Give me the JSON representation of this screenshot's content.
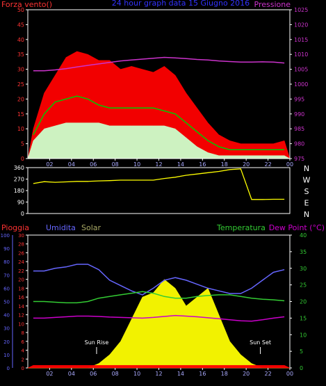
{
  "chart_data": [
    {
      "type": "area",
      "title": "24 hour graph data  15 Giugno 2016",
      "left_axis_label": "Forza vento()",
      "right_axis_label": "Pressione",
      "x_tick_labels": [
        "02",
        "04",
        "06",
        "08",
        "10",
        "12",
        "14",
        "16",
        "18",
        "20",
        "22",
        "00"
      ],
      "y_left_ticks": [
        0,
        5,
        10,
        15,
        20,
        25,
        30,
        35,
        40,
        45,
        50
      ],
      "y_right_ticks": [
        975,
        980,
        985,
        990,
        995,
        1000,
        1005,
        1010,
        1015,
        1020,
        1025
      ],
      "ylim_left": [
        0,
        50
      ],
      "ylim_right": [
        975,
        1025
      ],
      "series": [
        {
          "color": "#ff0000",
          "values": [
            10,
            22,
            28,
            34,
            36,
            35,
            33,
            33,
            30,
            31,
            30,
            29,
            31,
            28,
            22,
            17,
            12,
            8,
            6,
            5,
            5,
            5,
            5,
            6
          ]
        },
        {
          "color": "#00cc00",
          "values": [
            8,
            15,
            19,
            20,
            21,
            20,
            18,
            17,
            17,
            17,
            17,
            17,
            16,
            15,
            12,
            9,
            6,
            4,
            3,
            3,
            3,
            3,
            3,
            3
          ]
        },
        {
          "color": "#ccffcc",
          "values": [
            6,
            10,
            11,
            12,
            12,
            12,
            12,
            11,
            11,
            11,
            11,
            11,
            11,
            10,
            7,
            4,
            2,
            1,
            1,
            1,
            1,
            1,
            1,
            1
          ]
        },
        {
          "color": "#cc33cc",
          "values": [
            1004.5,
            1004.5,
            1004.8,
            1005.2,
            1005.8,
            1006.3,
            1006.8,
            1007.3,
            1007.8,
            1008.1,
            1008.4,
            1008.7,
            1009.0,
            1008.8,
            1008.6,
            1008.3,
            1008.1,
            1007.8,
            1007.6,
            1007.4,
            1007.4,
            1007.5,
            1007.4,
            1007.1
          ]
        }
      ]
    },
    {
      "type": "line",
      "right_labels": [
        "N",
        "W",
        "S",
        "E",
        "N"
      ],
      "y_ticks": [
        0,
        90,
        180,
        270,
        360
      ],
      "ylim": [
        0,
        360
      ],
      "series": [
        {
          "color": "#ffff00",
          "values": [
            235,
            250,
            245,
            248,
            252,
            252,
            256,
            258,
            262,
            262,
            262,
            262,
            275,
            285,
            300,
            310,
            320,
            330,
            345,
            350,
            110,
            110,
            112,
            112
          ]
        }
      ]
    },
    {
      "type": "area",
      "labels": {
        "rain": "Pioggia",
        "humidity": "Umidita",
        "solar": "Solar",
        "temperature": "Temperatura",
        "dewpoint": "Dew Point (°C)"
      },
      "annotations": [
        {
          "text": "Sun Rise"
        },
        {
          "text": "Sun Set"
        }
      ],
      "x_tick_labels": [
        "02",
        "04",
        "06",
        "08",
        "10",
        "12",
        "14",
        "16",
        "18",
        "20",
        "22",
        "00"
      ],
      "y_rain_ticks": [
        0,
        2,
        4,
        6,
        8,
        10,
        12,
        14,
        16,
        18,
        20,
        22,
        24,
        26,
        28,
        30
      ],
      "y_humidity_ticks": [
        0,
        10,
        20,
        30,
        40,
        50,
        60,
        70,
        80,
        90,
        100
      ],
      "y_temp_ticks": [
        0,
        5,
        10,
        15,
        20,
        25,
        30,
        35,
        40
      ],
      "series": [
        {
          "name": "Umidita",
          "color": "#6666ff",
          "values": [
            73,
            73,
            75,
            76,
            78,
            78,
            74,
            66,
            62,
            58,
            55,
            60,
            66,
            68,
            66,
            63,
            60,
            58,
            56,
            56,
            60,
            66,
            72,
            74
          ]
        },
        {
          "name": "Temperatura",
          "color": "#33cc33",
          "values": [
            20.0,
            20.0,
            19.8,
            19.6,
            19.6,
            20.0,
            21.0,
            21.5,
            22.0,
            22.5,
            23.0,
            22.5,
            21.5,
            21.0,
            21.0,
            21.5,
            21.8,
            22.0,
            22.0,
            21.5,
            21.0,
            20.7,
            20.5,
            20.2
          ]
        },
        {
          "name": "Dew Point (°C)",
          "color": "#cc00cc",
          "values": [
            15.0,
            15.0,
            15.2,
            15.4,
            15.6,
            15.6,
            15.5,
            15.3,
            15.2,
            15.1,
            15.0,
            15.2,
            15.5,
            15.8,
            15.6,
            15.4,
            15.1,
            14.8,
            14.5,
            14.2,
            14.1,
            14.5,
            15.0,
            15.4
          ]
        },
        {
          "name": "Solar",
          "color": "#ffff00",
          "values": [
            0,
            0,
            0,
            0,
            0,
            0,
            1,
            3,
            6,
            11,
            16,
            17,
            20,
            18,
            14,
            16,
            18,
            12,
            6,
            3,
            1,
            0,
            0,
            0
          ]
        },
        {
          "name": "Pioggia",
          "color": "#ff0000",
          "values": [
            0.6,
            0.6,
            0.6,
            0.6,
            0.6,
            0.6,
            0.6,
            0.6,
            0.6,
            0.6,
            0.6,
            0.6,
            0.6,
            0.6,
            0.6,
            0.6,
            0.6,
            0.6,
            0.6,
            0.6,
            0.6,
            0.6,
            0.6,
            0.6
          ]
        }
      ]
    }
  ]
}
